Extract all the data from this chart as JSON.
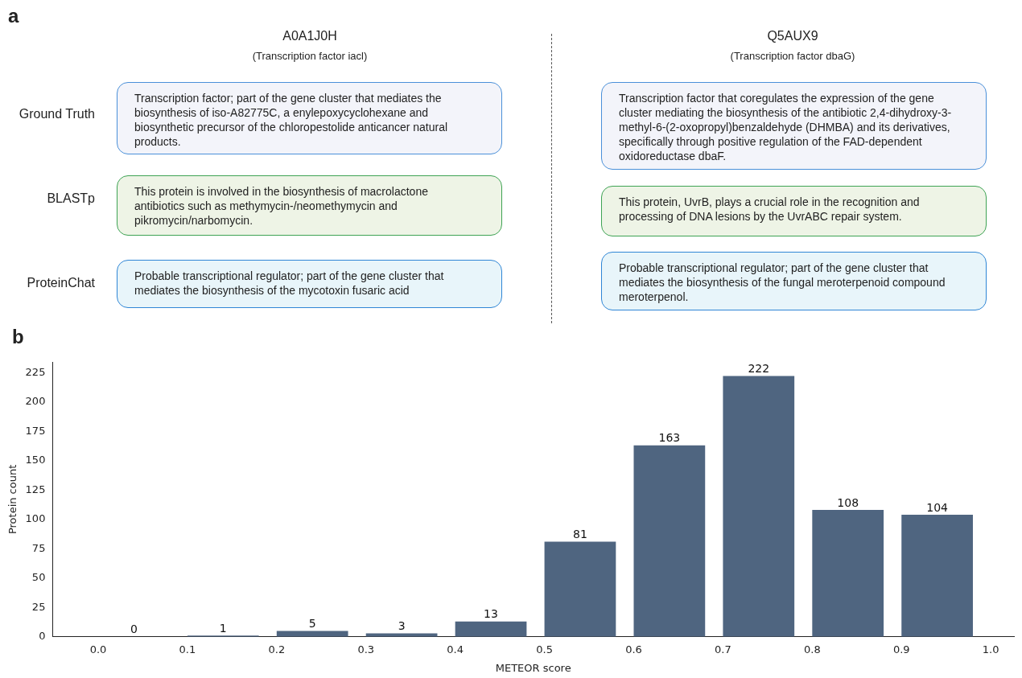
{
  "chart_data": [
    {
      "type": "other",
      "annotations": [
        "a",
        "A0A1J0H",
        "(Transcription factor iacl)",
        "Q5AUX9",
        "(Transcription factor dbaG)",
        "Ground Truth",
        "BLASTp",
        "ProteinChat",
        "Transcription factor; part of the gene cluster that mediates the biosynthesis of iso-A82775C, a enylepoxycyclohexane and biosynthetic precursor of the chloropestolide anticancer natural products.",
        "This protein is involved in the biosynthesis of macrolactone antibiotics such as methymycin-/neomethymycin and pikromycin/narbomycin.",
        "Probable transcriptional regulator; part of the gene cluster that mediates the biosynthesis of the mycotoxin fusaric acid",
        "Transcription factor that coregulates the expression of the gene cluster mediating the biosynthesis of the antibiotic 2,4-dihydroxy-3-methyl-6-(2-oxopropyl)benzaldehyde (DHMBA) and its derivatives, specifically through positive regulation of the FAD-dependent oxidoreductase dbaF.",
        "This protein, UvrB, plays a crucial role in the recognition and processing of DNA lesions by the UvrABC repair system.",
        "Probable transcriptional regulator; part of the gene cluster that mediates the biosynthesis of the fungal meroterpenoid compound meroterpenol."
      ]
    },
    {
      "type": "bar",
      "xlabel": "METEOR score",
      "ylabel": "Protein count",
      "annotations": [
        "b"
      ],
      "x": [
        0.04,
        0.14,
        0.24,
        0.34,
        0.44,
        0.54,
        0.64,
        0.74,
        0.84,
        0.94
      ],
      "values": [
        0,
        1,
        5,
        3,
        13,
        81,
        163,
        222,
        108,
        104
      ],
      "color": "#4f6580",
      "data_labels": true,
      "grid": false,
      "legend": false,
      "xlim": [
        -0.051,
        1.026
      ],
      "ylim": [
        0,
        234
      ],
      "xticks": [
        {
          "value": 0,
          "label": "0.0"
        },
        {
          "value": 0.1,
          "label": "0.1"
        },
        {
          "value": 0.2,
          "label": "0.2"
        },
        {
          "value": 0.3,
          "label": "0.3"
        },
        {
          "value": 0.4,
          "label": "0.4"
        },
        {
          "value": 0.5,
          "label": "0.5"
        },
        {
          "value": 0.6,
          "label": "0.6"
        },
        {
          "value": 0.7,
          "label": "0.7"
        },
        {
          "value": 0.8,
          "label": "0.8"
        },
        {
          "value": 0.9,
          "label": "0.9"
        },
        {
          "value": 1,
          "label": "1.0"
        }
      ],
      "yticks": [
        0,
        25,
        50,
        75,
        100,
        125,
        150,
        175,
        200,
        225
      ]
    }
  ]
}
